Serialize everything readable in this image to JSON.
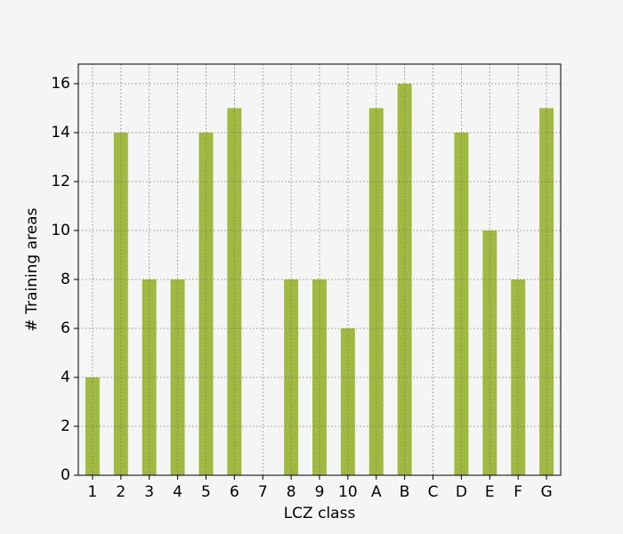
{
  "chart_data": {
    "type": "bar",
    "xlabel": "LCZ class",
    "ylabel": "# Training areas",
    "categories": [
      "1",
      "2",
      "3",
      "4",
      "5",
      "6",
      "7",
      "8",
      "9",
      "10",
      "A",
      "B",
      "C",
      "D",
      "E",
      "F",
      "G"
    ],
    "values": [
      4,
      14,
      8,
      8,
      14,
      15,
      0,
      8,
      8,
      6,
      15,
      16,
      0,
      14,
      10,
      8,
      15
    ],
    "color": "#a0b941",
    "ylim": [
      0,
      16.8
    ],
    "yticks": [
      0,
      2,
      4,
      6,
      8,
      10,
      12,
      14,
      16
    ],
    "grid": true
  }
}
